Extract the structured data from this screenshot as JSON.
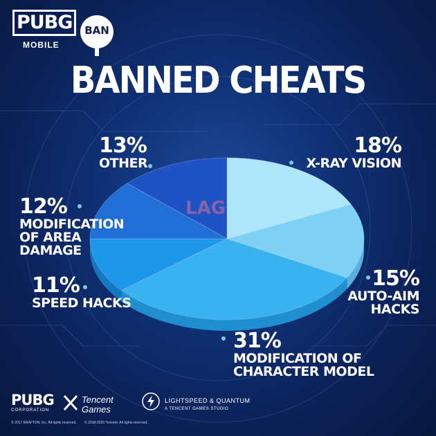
{
  "branding": {
    "logo_top": "PUBG",
    "logo_sub": "MOBILE",
    "badge": "BAN",
    "watermark": "LAG",
    "footer_pubg": "PUBG",
    "footer_corp": "CORPORATION",
    "tencent_line1": "Tencent",
    "tencent_line2": "Games",
    "lightspeed_line1": "LIGHTSPEED & QUANTUM",
    "lightspeed_line2": "A TENCENT GAMES STUDIO",
    "copyright1": "© 2017 KRAFTON, Inc. All rights reserved.",
    "copyright2": "© 2018-2020 Tencent. All rights reserved."
  },
  "chart_data": {
    "type": "pie",
    "title": "BANNED CHEATS",
    "slices": [
      {
        "label": "X-RAY VISION",
        "label_lines": [
          "X-RAY VISION"
        ],
        "value": 18,
        "pct_text": "18%",
        "color": "#aee6fb",
        "side": "#7cc6e6"
      },
      {
        "label": "AUTO-AIM HACKS",
        "label_lines": [
          "AUTO-AIM",
          "HACKS"
        ],
        "value": 15,
        "pct_text": "15%",
        "color": "#7fd0f5",
        "side": "#58aede"
      },
      {
        "label": "MODIFICATION OF CHARACTER MODEL",
        "label_lines": [
          "MODIFICATION OF",
          "CHARACTER MODEL"
        ],
        "value": 31,
        "pct_text": "31%",
        "color": "#38b3f0",
        "side": "#1f8fcf"
      },
      {
        "label": "SPEED HACKS",
        "label_lines": [
          "SPEED HACKS"
        ],
        "value": 11,
        "pct_text": "11%",
        "color": "#1e96ea",
        "side": "#1576c1"
      },
      {
        "label": "MODIFICATION OF AREA DAMAGE",
        "label_lines": [
          "MODIFICATION",
          "OF AREA DAMAGE"
        ],
        "value": 12,
        "pct_text": "12%",
        "color": "#1f6fd6",
        "side": "#1755aa"
      },
      {
        "label": "OTHER",
        "label_lines": [
          "OTHER"
        ],
        "value": 13,
        "pct_text": "13%",
        "color": "#1f52c4",
        "side": "#173f98"
      }
    ]
  }
}
